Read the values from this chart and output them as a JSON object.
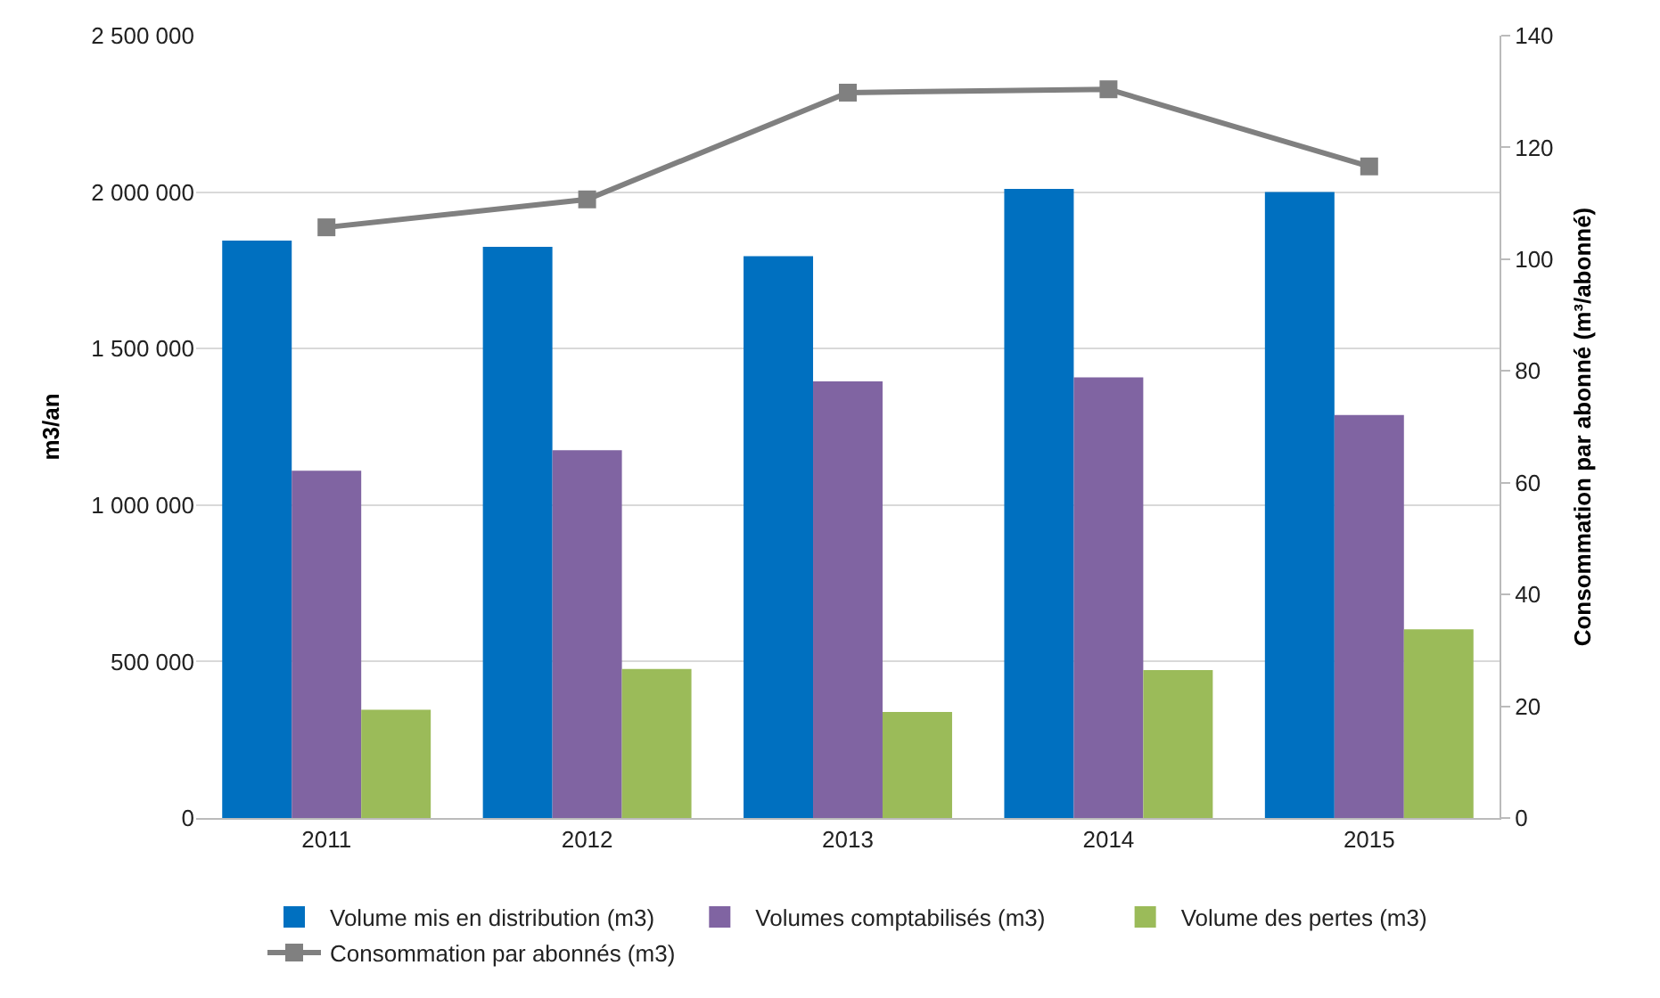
{
  "chart_data": {
    "type": "bar",
    "ylabel": "m3/an",
    "y2label": "Consommation par abonné (m³/abonné)",
    "categories": [
      "2011",
      "2012",
      "2013",
      "2014",
      "2015"
    ],
    "series": [
      {
        "name": "Volume mis en distribution (m3)",
        "color": "#0070c0",
        "values": [
          1845000,
          1825000,
          1795000,
          2010000,
          2000000
        ]
      },
      {
        "name": "Volumes comptabilisés (m3)",
        "color": "#8064a2",
        "values": [
          1110000,
          1175000,
          1395000,
          1408000,
          1288000
        ]
      },
      {
        "name": "Volume des pertes (m3)",
        "color": "#9bbb59",
        "values": [
          346000,
          476000,
          339000,
          473000,
          603000
        ]
      },
      {
        "name": "Consommation par abonnés (m3)",
        "type": "line",
        "axis": "y2",
        "color": "#808080",
        "marker": "square",
        "values": [
          105.7,
          110.7,
          129.8,
          130.4,
          116.6
        ]
      }
    ],
    "ylim": [
      0,
      2500000
    ],
    "yticks": [
      {
        "value": 0,
        "label": "0"
      },
      {
        "value": 500000,
        "label": "500 000"
      },
      {
        "value": 1000000,
        "label": "1 000 000"
      },
      {
        "value": 1500000,
        "label": "1 500 000"
      },
      {
        "value": 2000000,
        "label": "2 000 000"
      },
      {
        "value": 2500000,
        "label": "2 500 000"
      }
    ],
    "y2lim": [
      0,
      140
    ],
    "y2ticks": [
      0,
      20,
      40,
      60,
      80,
      100,
      120,
      140
    ],
    "grid": "y",
    "legend": "bottom"
  }
}
